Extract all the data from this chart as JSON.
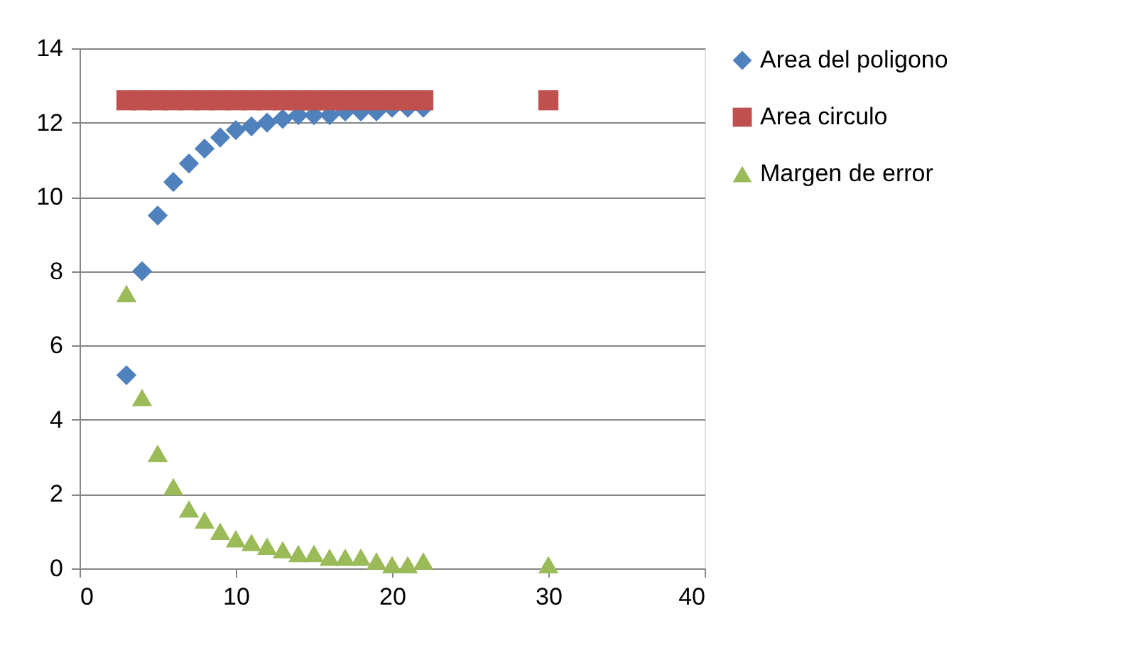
{
  "chart_data": {
    "type": "scatter",
    "xlim": [
      0,
      40
    ],
    "xticks": [
      0,
      10,
      20,
      30,
      40
    ],
    "ylim": [
      0,
      14
    ],
    "yticks": [
      0,
      2,
      4,
      6,
      8,
      10,
      12,
      14
    ],
    "grid": "y",
    "legend": "right",
    "series": [
      {
        "name": "Area del poligono",
        "color": "#4f81bd",
        "marker": "diamond",
        "x": [
          3,
          4,
          5,
          6,
          7,
          8,
          9,
          10,
          11,
          12,
          13,
          14,
          15,
          16,
          17,
          18,
          19,
          20,
          21,
          22
        ],
        "values": [
          5.2,
          8.0,
          9.5,
          10.4,
          10.9,
          11.3,
          11.6,
          11.8,
          11.9,
          12.0,
          12.1,
          12.2,
          12.2,
          12.2,
          12.3,
          12.3,
          12.3,
          12.4,
          12.4,
          12.4
        ]
      },
      {
        "name": "Area circulo",
        "color": "#c0504d",
        "marker": "square",
        "x": [
          3,
          4,
          5,
          6,
          7,
          8,
          9,
          10,
          11,
          12,
          13,
          14,
          15,
          16,
          17,
          18,
          19,
          20,
          21,
          22,
          30
        ],
        "values": [
          12.6,
          12.6,
          12.6,
          12.6,
          12.6,
          12.6,
          12.6,
          12.6,
          12.6,
          12.6,
          12.6,
          12.6,
          12.6,
          12.6,
          12.6,
          12.6,
          12.6,
          12.6,
          12.6,
          12.6,
          12.6
        ]
      },
      {
        "name": "Margen de error",
        "color": "#9bbb59",
        "marker": "triangle",
        "x": [
          3,
          4,
          5,
          6,
          7,
          8,
          9,
          10,
          11,
          12,
          13,
          14,
          15,
          16,
          17,
          18,
          19,
          20,
          21,
          22,
          30
        ],
        "values": [
          7.4,
          4.6,
          3.1,
          2.2,
          1.6,
          1.3,
          1.0,
          0.8,
          0.7,
          0.6,
          0.5,
          0.4,
          0.4,
          0.3,
          0.3,
          0.3,
          0.2,
          0.1,
          0.1,
          0.2,
          0.1
        ]
      }
    ]
  }
}
